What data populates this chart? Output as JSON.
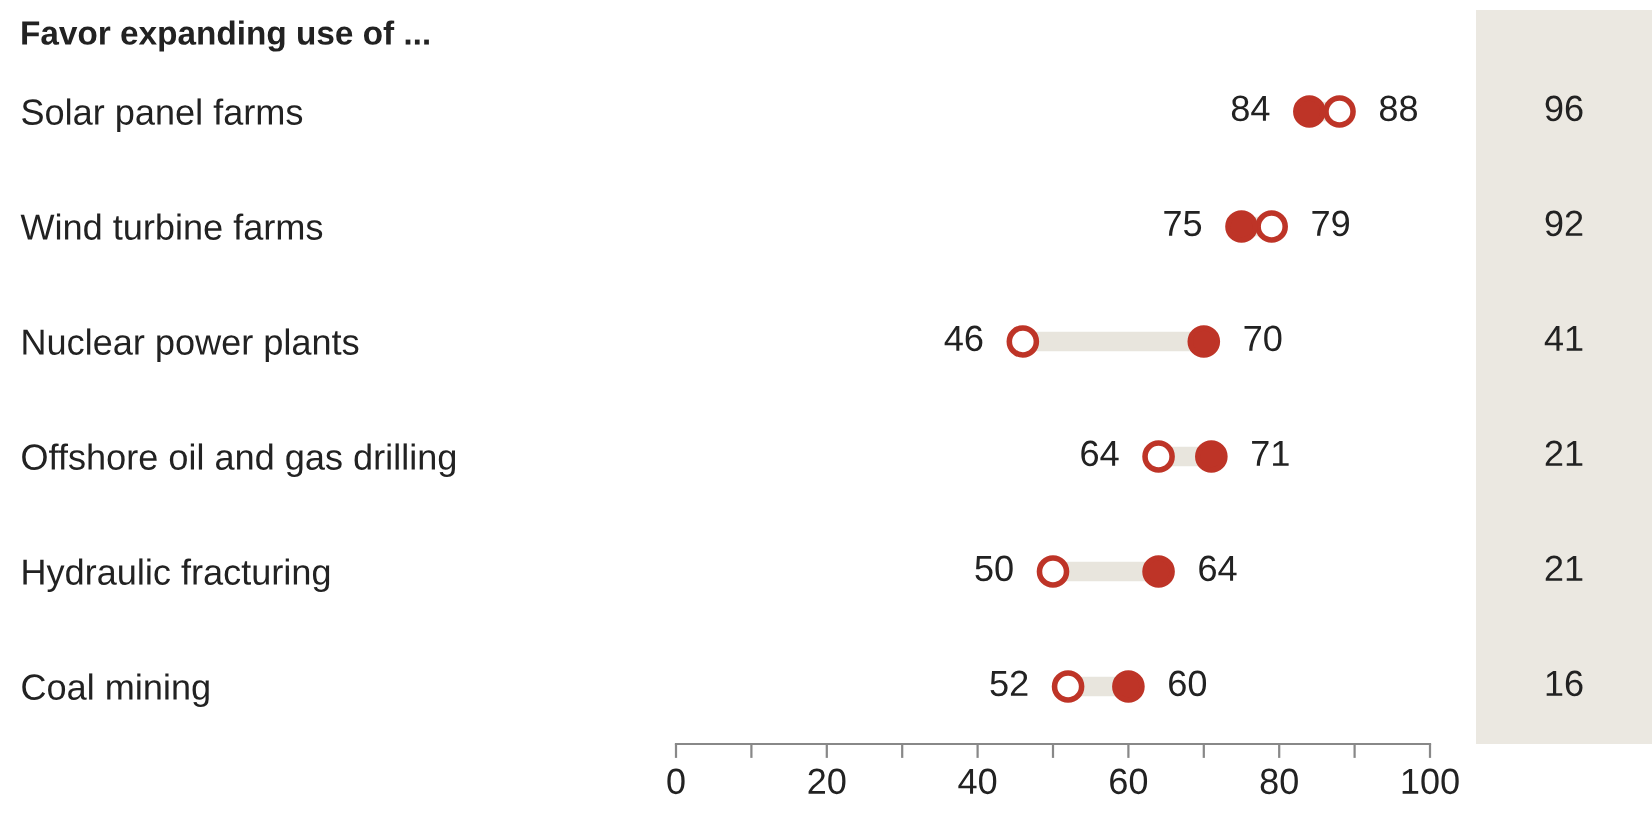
{
  "chart_data": [
    {
      "type": "scatter",
      "title": "Favor expanding use of ...",
      "orientation": "horizontal",
      "categories": [
        "Solar panel farms",
        "Wind turbine farms",
        "Nuclear power plants",
        "Offshore oil and gas drilling",
        "Hydraulic fracturing",
        "Coal mining"
      ],
      "series": [
        {
          "color": "#be3427",
          "values": [
            84,
            75,
            70,
            71,
            64,
            60
          ]
        },
        {
          "color": "#be3427",
          "values": [
            88,
            79,
            46,
            64,
            50,
            52
          ]
        }
      ],
      "marker": "circle",
      "data_labels": true,
      "grid": false,
      "legend": false,
      "xlim": [
        0,
        100
      ],
      "xticks": [
        0,
        {
          "value": 10,
          "label": null
        },
        20,
        {
          "value": 30,
          "label": null
        },
        40,
        {
          "value": 50,
          "label": null
        },
        60,
        {
          "value": 70,
          "label": null
        },
        80,
        {
          "value": 90,
          "label": null
        },
        100
      ]
    },
    {
      "type": "other",
      "categories": [
        null,
        null,
        null,
        null,
        null,
        null
      ],
      "values": [
        96,
        92,
        41,
        21,
        21,
        16
      ],
      "data_labels": true
    }
  ]
}
